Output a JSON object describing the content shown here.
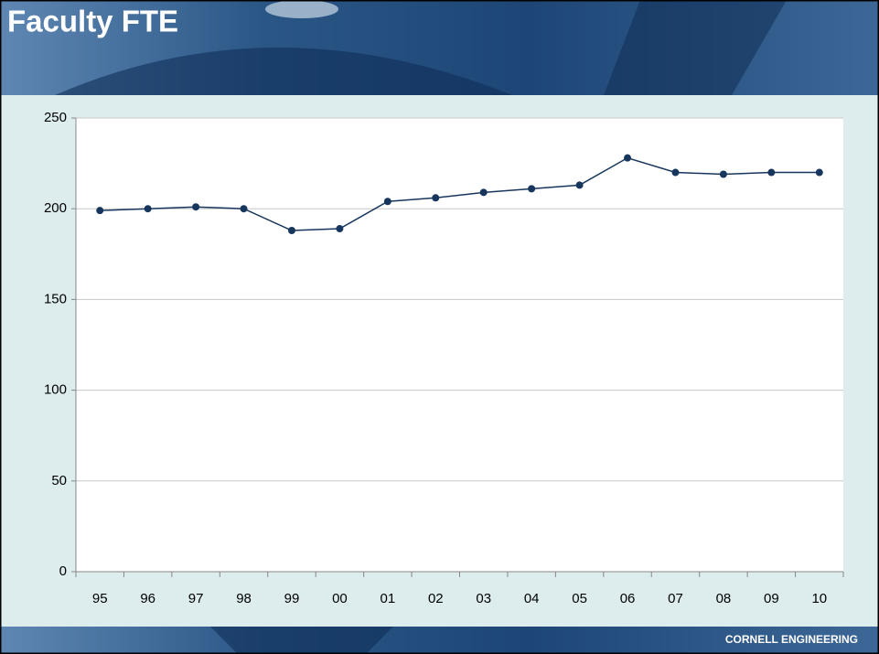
{
  "chart_data": {
    "type": "line",
    "title": "Faculty FTE",
    "categories": [
      "95",
      "96",
      "97",
      "98",
      "99",
      "00",
      "01",
      "02",
      "03",
      "04",
      "05",
      "06",
      "07",
      "08",
      "09",
      "10"
    ],
    "values": [
      199,
      200,
      201,
      200,
      188,
      189,
      204,
      206,
      209,
      211,
      213,
      228,
      220,
      219,
      220,
      220
    ],
    "color": "#17365d",
    "ylim": [
      0,
      250
    ],
    "yticks": [
      0,
      50,
      100,
      150,
      200,
      250
    ],
    "grid": true
  },
  "footer": "CORNELL ENGINEERING"
}
